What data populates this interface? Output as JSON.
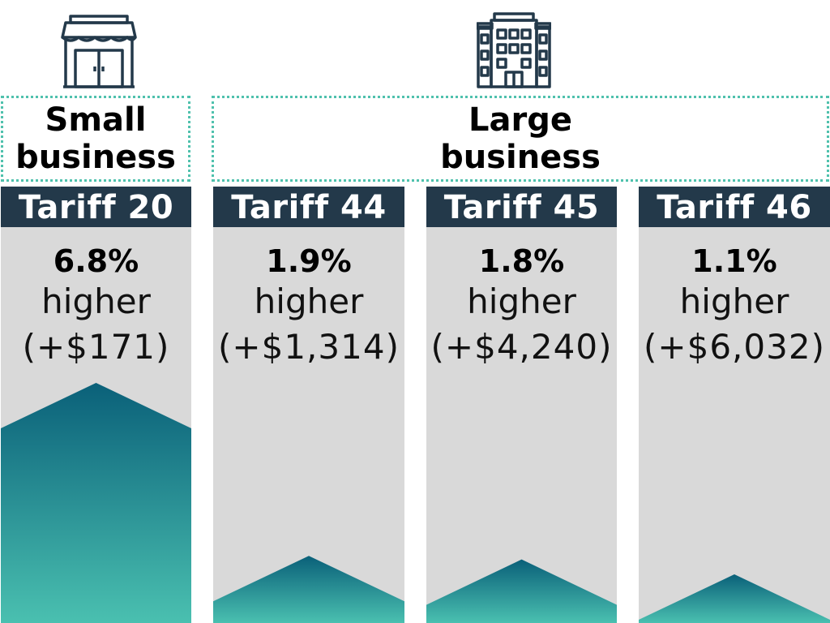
{
  "colors": {
    "header_bg": "#23394a",
    "column_bg": "#d9d9d9",
    "bar_top": "#0a6079",
    "bar_bottom": "#4ac0b0",
    "dotted_border": "#4fc1ad",
    "icon_stroke": "#23394a"
  },
  "groups": [
    {
      "label": "Small business",
      "icon": "storefront-icon"
    },
    {
      "label": "Large business",
      "icon": "office-building-icon"
    }
  ],
  "columns": [
    {
      "tariff": "Tariff 20",
      "pct": "6.8%",
      "word": "higher",
      "amount": "(+$171)"
    },
    {
      "tariff": "Tariff 44",
      "pct": "1.9%",
      "word": "higher",
      "amount": "(+$1,314)"
    },
    {
      "tariff": "Tariff 45",
      "pct": "1.8%",
      "word": "higher",
      "amount": "(+$4,240)"
    },
    {
      "tariff": "Tariff 46",
      "pct": "1.1%",
      "word": "higher",
      "amount": "(+$6,032)"
    }
  ],
  "chart_data": {
    "type": "bar",
    "categories": [
      "Tariff 20",
      "Tariff 44",
      "Tariff 45",
      "Tariff 46"
    ],
    "values": [
      6.8,
      1.9,
      1.8,
      1.1
    ],
    "ylim": [
      0,
      6.8
    ],
    "grid": false
  }
}
